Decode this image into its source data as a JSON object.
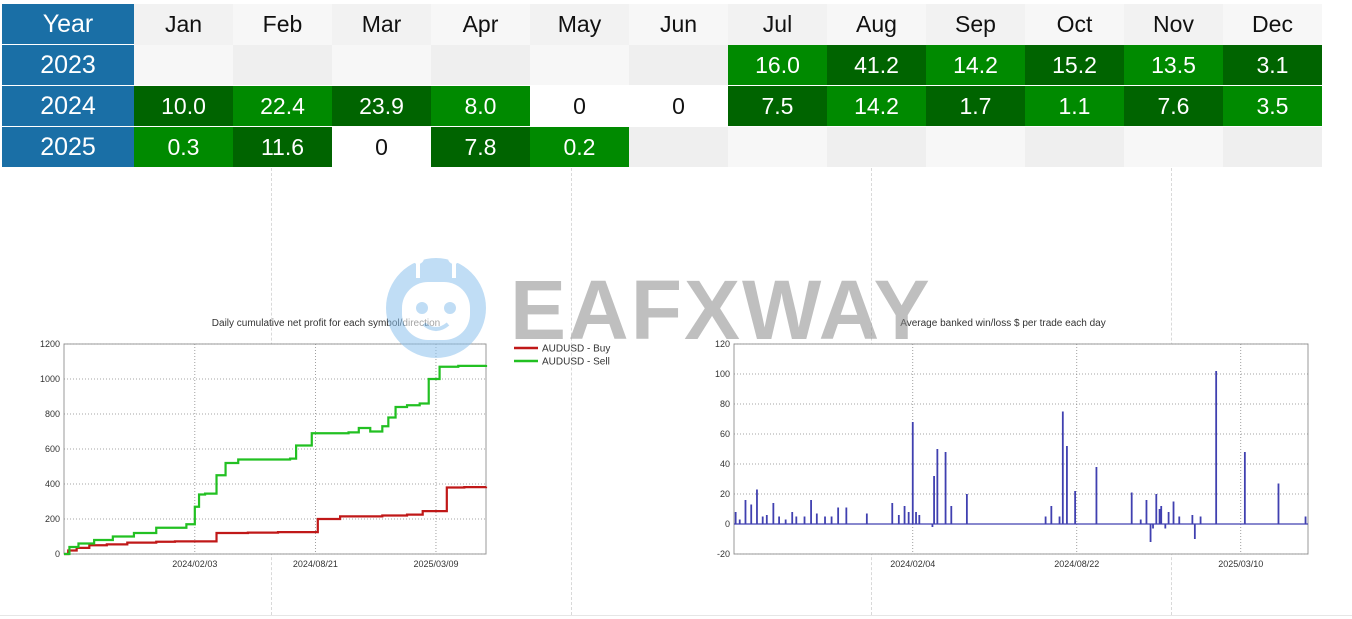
{
  "table": {
    "year_header": "Year",
    "months": [
      "Jan",
      "Feb",
      "Mar",
      "Apr",
      "May",
      "Jun",
      "Jul",
      "Aug",
      "Sep",
      "Oct",
      "Nov",
      "Dec"
    ],
    "rows": [
      {
        "year": "2023",
        "values": [
          "",
          "",
          "",
          "",
          "",
          "",
          "16.0",
          "41.2",
          "14.2",
          "15.2",
          "13.5",
          "3.1"
        ]
      },
      {
        "year": "2024",
        "values": [
          "10.0",
          "22.4",
          "23.9",
          "8.0",
          "0",
          "0",
          "7.5",
          "14.2",
          "1.7",
          "1.1",
          "7.6",
          "3.5"
        ]
      },
      {
        "year": "2025",
        "values": [
          "0.3",
          "11.6",
          "0",
          "7.8",
          "0.2",
          "",
          "",
          "",
          "",
          "",
          "",
          ""
        ]
      }
    ],
    "colors": {
      "green_light": "#008a00",
      "green_dark": "#006400",
      "empty_a": "#f7f7f7",
      "empty_b": "#efefef",
      "header": "#1a6fa6"
    }
  },
  "watermark": {
    "text": "EAFXWAY",
    "logo_icon": "robot-logo-icon"
  },
  "chart_data": [
    {
      "type": "line",
      "title": "Daily cumulative net profit for each symbol/direction",
      "xlabel": "",
      "ylabel": "",
      "ylim": [
        0,
        1200
      ],
      "yticks": [
        0,
        200,
        400,
        600,
        800,
        1000,
        1200
      ],
      "x_range": [
        "2023-07-01",
        "2025-05-31"
      ],
      "xticks": [
        "2024/02/03",
        "2024/08/21",
        "2025/03/09"
      ],
      "grid": true,
      "legend_position": "top-right",
      "series": [
        {
          "name": "AUDUSD - Buy",
          "color": "#c01818",
          "x": [
            "2023-07-01",
            "2023-07-08",
            "2023-07-22",
            "2023-08-12",
            "2023-09-10",
            "2023-10-14",
            "2023-12-01",
            "2024-01-01",
            "2024-02-03",
            "2024-03-10",
            "2024-05-01",
            "2024-06-20",
            "2024-08-15",
            "2024-08-25",
            "2024-10-01",
            "2024-12-10",
            "2025-01-20",
            "2025-02-15",
            "2025-03-20",
            "2025-03-27",
            "2025-04-25",
            "2025-05-31"
          ],
          "y": [
            0,
            20,
            35,
            50,
            55,
            65,
            70,
            72,
            72,
            120,
            122,
            125,
            125,
            200,
            215,
            220,
            225,
            245,
            245,
            380,
            382,
            385
          ]
        },
        {
          "name": "AUDUSD - Sell",
          "color": "#22c022",
          "x": [
            "2023-07-01",
            "2023-07-10",
            "2023-07-25",
            "2023-08-20",
            "2023-09-20",
            "2023-10-25",
            "2023-12-01",
            "2024-01-05",
            "2024-01-20",
            "2024-02-03",
            "2024-02-10",
            "2024-02-20",
            "2024-03-10",
            "2024-03-25",
            "2024-04-15",
            "2024-06-01",
            "2024-07-10",
            "2024-07-20",
            "2024-08-15",
            "2024-09-01",
            "2024-10-15",
            "2024-11-01",
            "2024-11-20",
            "2024-12-10",
            "2024-12-20",
            "2025-01-01",
            "2025-01-20",
            "2025-02-10",
            "2025-02-25",
            "2025-03-15",
            "2025-04-15",
            "2025-05-31"
          ],
          "y": [
            0,
            40,
            60,
            80,
            100,
            120,
            150,
            150,
            170,
            270,
            340,
            345,
            450,
            520,
            540,
            540,
            545,
            620,
            690,
            690,
            695,
            720,
            700,
            730,
            780,
            840,
            850,
            860,
            1000,
            1070,
            1075,
            1080
          ]
        }
      ]
    },
    {
      "type": "bar",
      "title": "Average banked win/loss $ per trade each day",
      "xlabel": "",
      "ylabel": "",
      "ylim": [
        -20,
        120
      ],
      "yticks": [
        -20,
        0,
        20,
        40,
        60,
        80,
        100,
        120
      ],
      "x_range": [
        "2023-07-01",
        "2025-05-31"
      ],
      "xticks": [
        "2024/02/04",
        "2024/08/22",
        "2025/03/10"
      ],
      "grid": true,
      "color": "#4040b0",
      "x": [
        "2023-07-03",
        "2023-07-08",
        "2023-07-15",
        "2023-07-22",
        "2023-07-29",
        "2023-08-05",
        "2023-08-10",
        "2023-08-18",
        "2023-08-25",
        "2023-09-02",
        "2023-09-10",
        "2023-09-15",
        "2023-09-25",
        "2023-10-03",
        "2023-10-10",
        "2023-10-20",
        "2023-10-28",
        "2023-11-05",
        "2023-11-15",
        "2023-12-10",
        "2024-01-10",
        "2024-01-18",
        "2024-01-25",
        "2024-01-30",
        "2024-02-04",
        "2024-02-08",
        "2024-02-12",
        "2024-02-28",
        "2024-03-01",
        "2024-03-05",
        "2024-03-15",
        "2024-03-22",
        "2024-04-10",
        "2024-07-15",
        "2024-07-22",
        "2024-08-01",
        "2024-08-05",
        "2024-08-10",
        "2024-08-20",
        "2024-09-15",
        "2024-10-28",
        "2024-11-08",
        "2024-11-15",
        "2024-11-20",
        "2024-11-23",
        "2024-11-27",
        "2024-12-01",
        "2024-12-03",
        "2024-12-08",
        "2024-12-12",
        "2024-12-18",
        "2024-12-25",
        "2025-01-10",
        "2025-01-13",
        "2025-01-20",
        "2025-02-08",
        "2025-03-15",
        "2025-04-25",
        "2025-05-28"
      ],
      "values": [
        8,
        3,
        16,
        13,
        23,
        5,
        6,
        14,
        5,
        3,
        8,
        5,
        5,
        16,
        7,
        5,
        5,
        11,
        11,
        7,
        14,
        6,
        12,
        8,
        68,
        8,
        6,
        -2,
        32,
        50,
        48,
        12,
        20,
        5,
        12,
        5,
        75,
        52,
        22,
        38,
        21,
        3,
        16,
        -12,
        -3,
        20,
        10,
        12,
        -3,
        8,
        15,
        5,
        6,
        -10,
        5,
        102,
        48,
        27,
        5
      ]
    }
  ]
}
